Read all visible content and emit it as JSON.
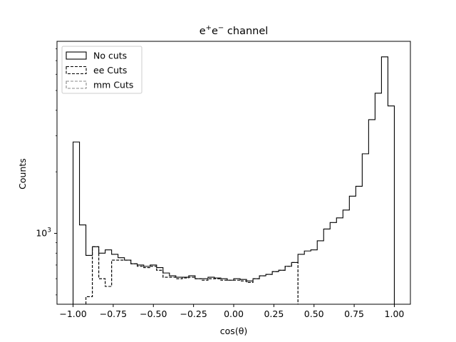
{
  "chart_data": {
    "type": "histogram",
    "title_base": "e",
    "title_sup1": "+",
    "title_mid": "e",
    "title_sup2": "−",
    "title_tail": " channel",
    "xlabel": "cos(θ)",
    "ylabel": "Counts",
    "xlim": [
      -1.1,
      1.1
    ],
    "ylim": [
      450,
      8700
    ],
    "yscale": "log",
    "x_ticks": [
      -1.0,
      -0.75,
      -0.5,
      -0.25,
      0.0,
      0.25,
      0.5,
      0.75,
      1.0
    ],
    "x_tick_labels": [
      "−1.00",
      "−0.75",
      "−0.50",
      "−0.25",
      "0.00",
      "0.25",
      "0.50",
      "0.75",
      "1.00"
    ],
    "y_major_ticks": [
      1000
    ],
    "y_major_tick_label_base": "10",
    "y_major_tick_label_exp": "3",
    "legend_position": "upper-left",
    "bin_edges": [
      -1.0,
      -0.96,
      -0.92,
      -0.88,
      -0.84,
      -0.8,
      -0.76,
      -0.72,
      -0.68,
      -0.64,
      -0.6,
      -0.56,
      -0.52,
      -0.48,
      -0.44,
      -0.4,
      -0.36,
      -0.32,
      -0.28,
      -0.24,
      -0.2,
      -0.16,
      -0.12,
      -0.08,
      -0.04,
      0.0,
      0.04,
      0.08,
      0.12,
      0.16,
      0.2,
      0.24,
      0.28,
      0.32,
      0.36,
      0.4,
      0.44,
      0.48,
      0.52,
      0.56,
      0.6,
      0.64,
      0.68,
      0.72,
      0.76,
      0.8,
      0.84,
      0.88,
      0.92,
      0.96,
      1.0
    ],
    "series": [
      {
        "name": "No cuts",
        "style": "solid",
        "color": "#000000",
        "values": [
          2800,
          1100,
          780,
          860,
          800,
          830,
          790,
          760,
          740,
          710,
          700,
          690,
          700,
          680,
          640,
          620,
          610,
          610,
          620,
          600,
          600,
          610,
          605,
          600,
          590,
          600,
          595,
          585,
          600,
          620,
          630,
          650,
          660,
          690,
          720,
          790,
          820,
          830,
          920,
          1050,
          1130,
          1190,
          1300,
          1520,
          1700,
          2450,
          3600,
          4850,
          7300,
          4200
        ]
      },
      {
        "name": "ee Cuts",
        "style": "dashed",
        "color": "#000000",
        "values": [
          0,
          0,
          490,
          860,
          600,
          550,
          740,
          740,
          740,
          710,
          690,
          680,
          690,
          660,
          610,
          610,
          600,
          605,
          610,
          600,
          590,
          600,
          600,
          590,
          590,
          590,
          585,
          575,
          600,
          620,
          630,
          650,
          660,
          690,
          720,
          0,
          0,
          0,
          0,
          0,
          0,
          0,
          0,
          0,
          0,
          0,
          0,
          0,
          0,
          0
        ]
      },
      {
        "name": "mm Cuts",
        "style": "dashed",
        "color": "#888888",
        "values": [
          0,
          0,
          490,
          860,
          600,
          550,
          740,
          740,
          740,
          710,
          690,
          680,
          690,
          660,
          610,
          610,
          600,
          605,
          610,
          600,
          590,
          600,
          600,
          590,
          590,
          590,
          585,
          575,
          600,
          620,
          630,
          650,
          660,
          690,
          720,
          0,
          0,
          0,
          0,
          0,
          0,
          0,
          0,
          0,
          0,
          0,
          0,
          0,
          0,
          0
        ]
      }
    ]
  }
}
